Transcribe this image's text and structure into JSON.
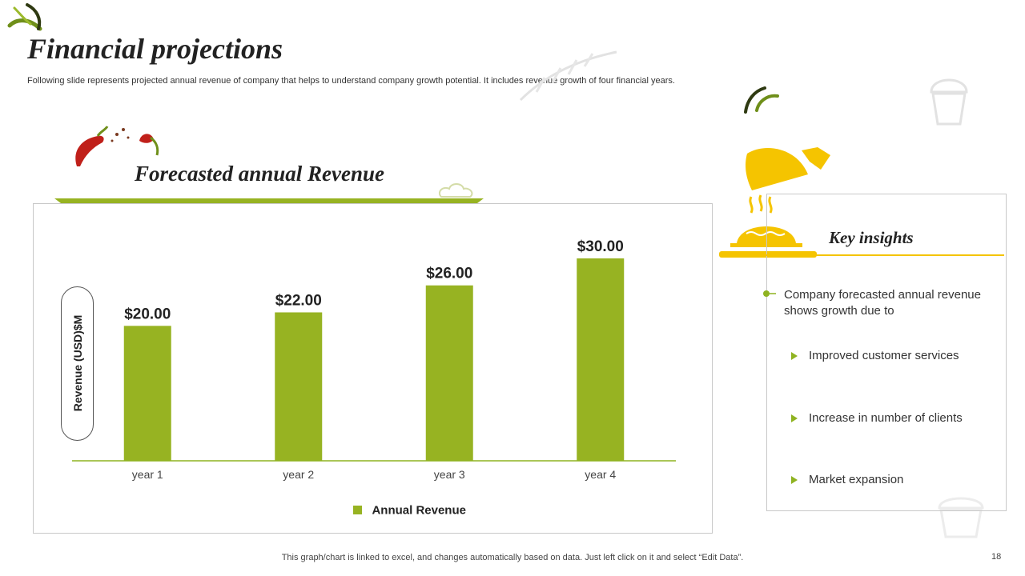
{
  "slide": {
    "title": "Financial projections",
    "subtitle": "Following slide represents projected annual revenue of company that helps to understand company growth potential. It includes revenue growth of four financial years.",
    "chart_heading": "Forecasted annual Revenue",
    "footer_note": "This graph/chart is linked to excel,  and changes automatically based on data. Just left click on it and select “Edit Data”.",
    "page_number": "18"
  },
  "insights": {
    "heading": "Key insights",
    "lead": "Company forecasted annual revenue shows growth due to",
    "bullets": [
      "Improved customer services",
      "Increase  in number  of clients",
      "Market expansion"
    ]
  },
  "colors": {
    "bar": "#97b322",
    "accent_yellow": "#f5c400",
    "axis": "#8fb321"
  },
  "icons": [
    "leaf-icon",
    "chili-icon",
    "serving-cloche-icon",
    "pie-icon",
    "cupcake-icon",
    "wheat-icon"
  ],
  "chart_data": {
    "type": "bar",
    "categories": [
      "year 1",
      "year 2",
      "year 3",
      "year 4"
    ],
    "series": [
      {
        "name": "Annual Revenue",
        "values": [
          20,
          22,
          26,
          30
        ]
      }
    ],
    "data_labels": [
      "$20.00",
      "$22.00",
      "$26.00",
      "$30.00"
    ],
    "ylabel": "Revenue (USD)$M",
    "xlabel": "",
    "ylim": [
      0,
      30
    ],
    "legend": "bottom-center",
    "grid": false
  }
}
